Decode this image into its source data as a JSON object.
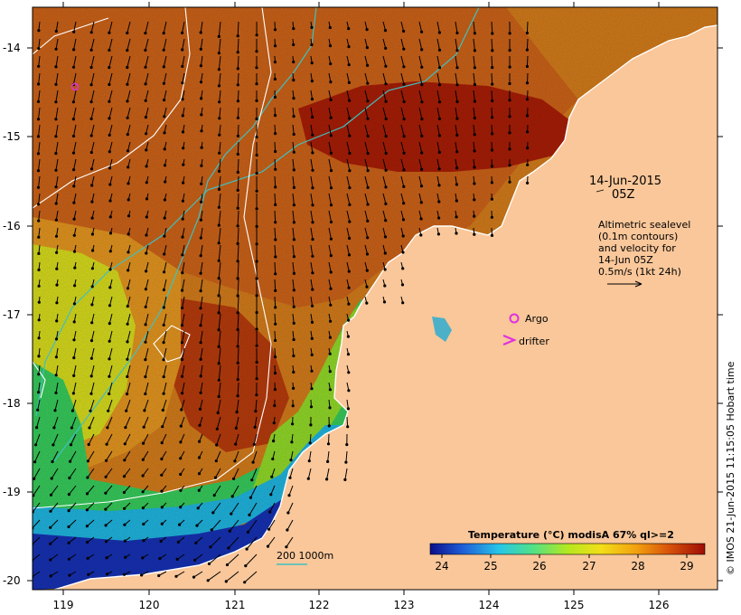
{
  "map": {
    "lon_ticks": [
      "119",
      "120",
      "121",
      "122",
      "123",
      "124",
      "125",
      "126"
    ],
    "lat_ticks": [
      "-14",
      "-15",
      "-16",
      "-17",
      "-18",
      "-19",
      "-20"
    ],
    "lon_range": [
      118.65,
      126.65
    ],
    "lat_range": [
      -13.55,
      -20.1
    ]
  },
  "datetime": {
    "date": "14-Jun-2015",
    "time": "05Z"
  },
  "info": {
    "line1": "Altimetric sealevel",
    "line2": "(0.1m contours)",
    "line3": "and velocity for",
    "line4": "14-Jun 05Z",
    "line5": "0.5m/s (1kt 24h)"
  },
  "legend": {
    "argo": "Argo",
    "drifter": "drifter",
    "isobath": "200  1000m"
  },
  "colorbar": {
    "title": "Temperature  (°C) modisA 67% ql>=2",
    "ticks": [
      "24",
      "25",
      "26",
      "27",
      "28",
      "29"
    ],
    "colors": [
      "#0b0f8c",
      "#1f5fd8",
      "#27c6e8",
      "#4fe08a",
      "#b4e81e",
      "#f2df18",
      "#f2a10f",
      "#d8520a",
      "#9e0d05"
    ]
  },
  "credit": "© IMOS 21-Jun-2015 11:15:05 Hobart time",
  "colors": {
    "land": "#f9c79a",
    "warm_deep": "#9a1a05",
    "warm": "#c85510",
    "mid": "#e08c20",
    "cool_yellow": "#d8e01a",
    "cool_green": "#30d068",
    "cool_cyan": "#20b8e0",
    "cold_blue": "#1628a8",
    "contour": "#ffffff",
    "isobath": "#40c0c0",
    "argo": "#e030e0"
  }
}
